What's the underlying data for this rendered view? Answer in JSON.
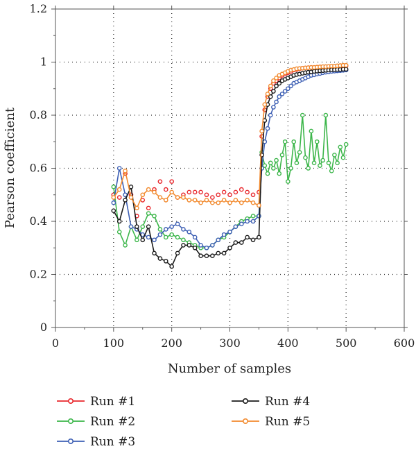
{
  "chart_data": {
    "type": "line",
    "xlabel": "Number of samples",
    "ylabel": "Pearson coefficient",
    "xlim": [
      0,
      600
    ],
    "ylim": [
      0,
      1.2
    ],
    "xticks": [
      0,
      100,
      200,
      300,
      400,
      500,
      600
    ],
    "yticks": [
      0,
      0.2,
      0.4,
      0.6,
      0.8,
      1,
      1.2
    ],
    "grid": "dotted",
    "legend_position": "below",
    "series": [
      {
        "name": "Run #1",
        "color": "#e8262b",
        "style": "markers",
        "x": [
          100,
          110,
          120,
          130,
          140,
          150,
          160,
          170,
          180,
          190,
          200,
          210,
          220,
          230,
          240,
          250,
          260,
          270,
          280,
          290,
          300,
          310,
          320,
          330,
          340,
          350,
          355,
          360,
          365,
          370,
          375,
          380,
          385,
          390,
          395,
          400,
          405,
          410,
          415,
          420,
          425,
          430,
          435,
          440,
          445,
          450,
          455,
          460,
          465,
          470,
          475,
          480,
          485,
          490,
          495,
          500
        ],
        "y": [
          0.5,
          0.49,
          0.58,
          0.5,
          0.42,
          0.48,
          0.45,
          0.52,
          0.55,
          0.52,
          0.55,
          0.49,
          0.5,
          0.51,
          0.51,
          0.51,
          0.5,
          0.49,
          0.5,
          0.51,
          0.5,
          0.51,
          0.52,
          0.51,
          0.5,
          0.51,
          0.72,
          0.82,
          0.87,
          0.9,
          0.92,
          0.93,
          0.94,
          0.95,
          0.955,
          0.96,
          0.965,
          0.97,
          0.972,
          0.975,
          0.977,
          0.978,
          0.979,
          0.98,
          0.98,
          0.981,
          0.982,
          0.982,
          0.983,
          0.983,
          0.984,
          0.984,
          0.985,
          0.985,
          0.985,
          0.986
        ]
      },
      {
        "name": "Run #2",
        "color": "#3cb64a",
        "style": "line-markers",
        "x": [
          100,
          110,
          120,
          130,
          140,
          150,
          160,
          170,
          180,
          190,
          200,
          210,
          220,
          230,
          240,
          250,
          260,
          270,
          280,
          290,
          300,
          310,
          320,
          330,
          340,
          350,
          355,
          360,
          365,
          370,
          375,
          380,
          385,
          390,
          395,
          400,
          405,
          410,
          415,
          420,
          425,
          430,
          435,
          440,
          445,
          450,
          455,
          460,
          465,
          470,
          475,
          480,
          485,
          490,
          495,
          500
        ],
        "y": [
          0.53,
          0.36,
          0.31,
          0.38,
          0.33,
          0.38,
          0.43,
          0.42,
          0.37,
          0.34,
          0.35,
          0.34,
          0.33,
          0.32,
          0.31,
          0.3,
          0.3,
          0.31,
          0.33,
          0.34,
          0.36,
          0.38,
          0.4,
          0.41,
          0.42,
          0.42,
          0.66,
          0.61,
          0.58,
          0.62,
          0.6,
          0.63,
          0.58,
          0.65,
          0.7,
          0.55,
          0.6,
          0.7,
          0.62,
          0.66,
          0.8,
          0.64,
          0.6,
          0.74,
          0.62,
          0.7,
          0.61,
          0.63,
          0.8,
          0.62,
          0.59,
          0.65,
          0.62,
          0.68,
          0.64,
          0.69
        ]
      },
      {
        "name": "Run #3",
        "color": "#3d5fb4",
        "style": "line-markers",
        "x": [
          100,
          110,
          120,
          130,
          140,
          150,
          160,
          170,
          180,
          190,
          200,
          210,
          220,
          230,
          240,
          250,
          260,
          270,
          280,
          290,
          300,
          310,
          320,
          330,
          340,
          350,
          355,
          360,
          365,
          370,
          375,
          380,
          385,
          390,
          395,
          400,
          405,
          410,
          415,
          420,
          425,
          430,
          435,
          440,
          445,
          450,
          455,
          460,
          465,
          470,
          475,
          480,
          485,
          490,
          495,
          500
        ],
        "y": [
          0.47,
          0.6,
          0.5,
          0.38,
          0.37,
          0.35,
          0.34,
          0.33,
          0.35,
          0.37,
          0.38,
          0.39,
          0.37,
          0.36,
          0.34,
          0.31,
          0.3,
          0.31,
          0.33,
          0.35,
          0.36,
          0.38,
          0.39,
          0.4,
          0.4,
          0.42,
          0.6,
          0.7,
          0.75,
          0.8,
          0.83,
          0.85,
          0.87,
          0.88,
          0.89,
          0.9,
          0.91,
          0.92,
          0.925,
          0.93,
          0.935,
          0.94,
          0.945,
          0.95,
          0.952,
          0.955,
          0.957,
          0.96,
          0.962,
          0.963,
          0.965,
          0.966,
          0.967,
          0.968,
          0.969,
          0.97
        ]
      },
      {
        "name": "Run #4",
        "color": "#1a1a1a",
        "style": "line-markers",
        "x": [
          100,
          110,
          120,
          130,
          140,
          150,
          160,
          170,
          180,
          190,
          200,
          210,
          220,
          230,
          240,
          250,
          260,
          270,
          280,
          290,
          300,
          310,
          320,
          330,
          340,
          350,
          355,
          360,
          365,
          370,
          375,
          380,
          385,
          390,
          395,
          400,
          405,
          410,
          415,
          420,
          425,
          430,
          435,
          440,
          445,
          450,
          455,
          460,
          465,
          470,
          475,
          480,
          485,
          490,
          495,
          500
        ],
        "y": [
          0.44,
          0.4,
          0.48,
          0.53,
          0.38,
          0.33,
          0.38,
          0.28,
          0.26,
          0.25,
          0.23,
          0.28,
          0.31,
          0.31,
          0.3,
          0.27,
          0.27,
          0.27,
          0.28,
          0.28,
          0.3,
          0.32,
          0.32,
          0.34,
          0.33,
          0.34,
          0.65,
          0.78,
          0.84,
          0.87,
          0.89,
          0.91,
          0.92,
          0.93,
          0.935,
          0.94,
          0.945,
          0.95,
          0.953,
          0.955,
          0.958,
          0.96,
          0.962,
          0.963,
          0.965,
          0.966,
          0.967,
          0.968,
          0.969,
          0.97,
          0.971,
          0.971,
          0.972,
          0.972,
          0.973,
          0.973
        ]
      },
      {
        "name": "Run #5",
        "color": "#f28a2e",
        "style": "line-markers",
        "x": [
          100,
          110,
          120,
          130,
          140,
          150,
          160,
          170,
          180,
          190,
          200,
          210,
          220,
          230,
          240,
          250,
          260,
          270,
          280,
          290,
          300,
          310,
          320,
          330,
          340,
          350,
          355,
          360,
          365,
          370,
          375,
          380,
          385,
          390,
          395,
          400,
          405,
          410,
          415,
          420,
          425,
          430,
          435,
          440,
          445,
          450,
          455,
          460,
          465,
          470,
          475,
          480,
          485,
          490,
          495,
          500
        ],
        "y": [
          0.49,
          0.52,
          0.59,
          0.49,
          0.45,
          0.5,
          0.52,
          0.51,
          0.49,
          0.48,
          0.51,
          0.49,
          0.49,
          0.48,
          0.48,
          0.47,
          0.48,
          0.47,
          0.47,
          0.48,
          0.47,
          0.48,
          0.47,
          0.48,
          0.47,
          0.46,
          0.74,
          0.84,
          0.88,
          0.91,
          0.93,
          0.94,
          0.95,
          0.955,
          0.96,
          0.965,
          0.97,
          0.972,
          0.975,
          0.976,
          0.977,
          0.978,
          0.979,
          0.98,
          0.98,
          0.981,
          0.982,
          0.983,
          0.983,
          0.984,
          0.985,
          0.985,
          0.986,
          0.987,
          0.988,
          0.988
        ]
      }
    ]
  }
}
